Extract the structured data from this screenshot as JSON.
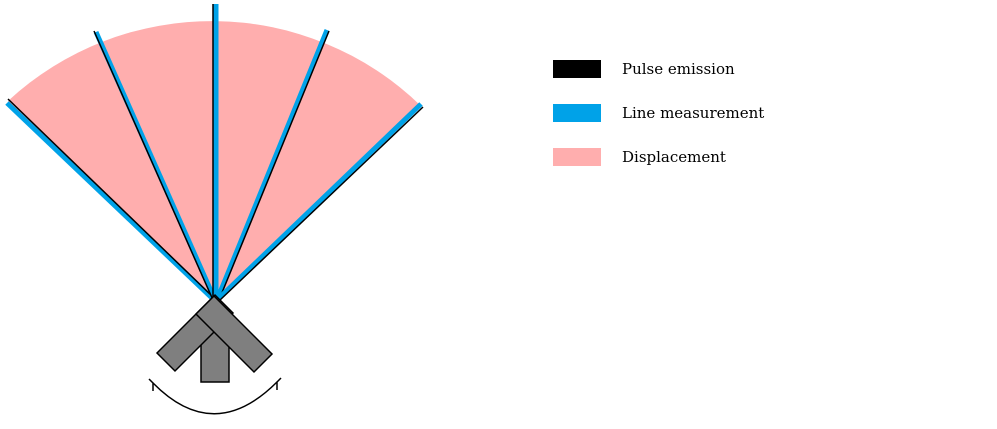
{
  "legend": {
    "items": [
      {
        "label": "Pulse emission",
        "color": "#000000"
      },
      {
        "label": "Line measurement",
        "color": "#00a2e8"
      },
      {
        "label": "Displacement",
        "color": "#ffaeae"
      }
    ]
  },
  "colors": {
    "pulse": "#000000",
    "line": "#00a2e8",
    "displacement": "#ffaeae",
    "sensor_fill": "#7f7f7f",
    "sensor_stroke": "#000000"
  },
  "icons": {
    "rotation": "curved-double-arrow",
    "sensor": "tripod-scanner"
  }
}
